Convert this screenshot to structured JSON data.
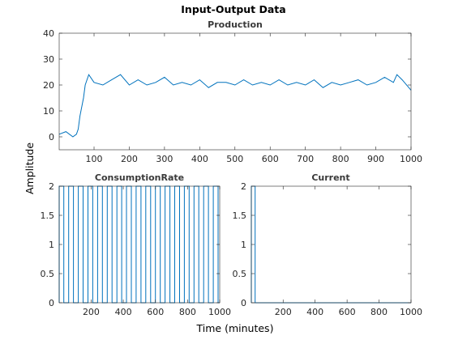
{
  "figure": {
    "title": "Input-Output Data",
    "xlabel": "Time (minutes)",
    "ylabel": "Amplitude",
    "line_color": "#0072BD"
  },
  "chart_data": [
    {
      "type": "line",
      "title": "Production",
      "xlim": [
        1,
        1000
      ],
      "ylim": [
        -5,
        40
      ],
      "xticks": [
        100,
        200,
        300,
        400,
        500,
        600,
        700,
        800,
        900,
        1000
      ],
      "yticks": [
        0,
        10,
        20,
        30,
        40
      ],
      "xtick_labels": [
        "100",
        "200",
        "300",
        "400",
        "500",
        "600",
        "700",
        "800",
        "900",
        "1000"
      ],
      "ytick_labels": [
        "0",
        "10",
        "20",
        "30",
        "40"
      ],
      "series": [
        {
          "x": [
            1,
            20,
            40,
            50,
            55,
            60,
            70,
            75,
            85,
            100,
            125,
            150,
            175,
            200,
            225,
            250,
            275,
            300,
            325,
            350,
            375,
            400,
            425,
            450,
            475,
            500,
            525,
            550,
            575,
            600,
            625,
            650,
            675,
            700,
            725,
            750,
            775,
            800,
            825,
            850,
            875,
            900,
            925,
            950,
            960,
            975,
            1000
          ],
          "y": [
            1,
            2,
            0,
            1,
            3,
            8,
            15,
            20,
            24,
            21,
            20,
            22,
            24,
            20,
            22,
            20,
            21,
            23,
            20,
            21,
            20,
            22,
            19,
            21,
            21,
            20,
            22,
            20,
            21,
            20,
            22,
            20,
            21,
            20,
            22,
            19,
            21,
            20,
            21,
            22,
            20,
            21,
            23,
            21,
            24,
            22,
            18
          ]
        }
      ]
    },
    {
      "type": "line",
      "title": "ConsumptionRate",
      "xlim": [
        1,
        1000
      ],
      "ylim": [
        0,
        2
      ],
      "xticks": [
        200,
        400,
        600,
        800,
        1000
      ],
      "yticks": [
        0,
        0.5,
        1,
        1.5,
        2
      ],
      "xtick_labels": [
        "200",
        "400",
        "600",
        "800",
        "1000"
      ],
      "ytick_labels": [
        "0",
        "0.5",
        "1",
        "1.5",
        "2"
      ],
      "series": [
        {
          "switch_times": [
            30,
            60,
            90,
            120,
            150,
            180,
            210,
            240,
            270,
            300,
            330,
            360,
            390,
            420,
            450,
            480,
            510,
            540,
            570,
            600,
            630,
            660,
            690,
            720,
            750,
            780,
            810,
            840,
            870,
            900,
            930,
            960,
            990
          ],
          "levels": [
            0,
            2
          ]
        }
      ]
    },
    {
      "type": "line",
      "title": "Current",
      "xlim": [
        1,
        1000
      ],
      "ylim": [
        0,
        2
      ],
      "xticks": [
        200,
        400,
        600,
        800,
        1000
      ],
      "yticks": [
        0,
        0.5,
        1,
        1.5,
        2
      ],
      "xtick_labels": [
        "200",
        "400",
        "600",
        "800",
        "1000"
      ],
      "ytick_labels": [
        "0",
        "0.5",
        "1",
        "1.5",
        "2"
      ],
      "series": [
        {
          "switch_times": [
            25
          ],
          "levels": [
            0,
            2
          ]
        }
      ]
    }
  ]
}
